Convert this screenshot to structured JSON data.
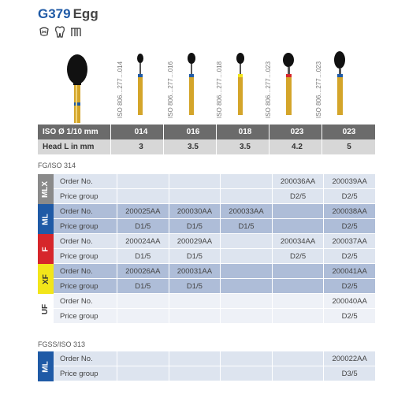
{
  "title": {
    "code": "G379",
    "name": "Egg"
  },
  "icons": [
    "tooth-crown-icon",
    "tooth-icon",
    "tooth-bridge-icon"
  ],
  "iso_labels": [
    "ISO 806…277…014",
    "ISO 806…277…016",
    "ISO 806…277…018",
    "ISO 806…277…023",
    "ISO 806…277…023"
  ],
  "header": {
    "iso_label": "ISO Ø 1/10 mm",
    "iso_values": [
      "014",
      "016",
      "018",
      "023",
      "023"
    ],
    "head_label": "Head L in mm",
    "head_values": [
      "3",
      "3.5",
      "3.5",
      "4.2",
      "5"
    ]
  },
  "section1": {
    "title": "FG/ISO 314",
    "groups": [
      {
        "tag": "MLX",
        "order_label": "Order No.",
        "price_label": "Price group",
        "orders": [
          "",
          "",
          "",
          "200036AA",
          "200039AA"
        ],
        "prices": [
          "",
          "",
          "",
          "D2/5",
          "D2/5"
        ]
      },
      {
        "tag": "ML",
        "order_label": "Order No.",
        "price_label": "Price group",
        "orders": [
          "200025AA",
          "200030AA",
          "200033AA",
          "",
          "200038AA"
        ],
        "prices": [
          "D1/5",
          "D1/5",
          "D1/5",
          "",
          "D2/5"
        ]
      },
      {
        "tag": "F",
        "order_label": "Order No.",
        "price_label": "Price group",
        "orders": [
          "200024AA",
          "200029AA",
          "",
          "200034AA",
          "200037AA"
        ],
        "prices": [
          "D1/5",
          "D1/5",
          "",
          "D2/5",
          "D2/5"
        ]
      },
      {
        "tag": "XF",
        "order_label": "Order No.",
        "price_label": "Price group",
        "orders": [
          "200026AA",
          "200031AA",
          "",
          "",
          "200041AA"
        ],
        "prices": [
          "D1/5",
          "D1/5",
          "",
          "",
          "D2/5"
        ]
      },
      {
        "tag": "UF",
        "order_label": "Order No.",
        "price_label": "Price group",
        "orders": [
          "",
          "",
          "",
          "",
          "200040AA"
        ],
        "prices": [
          "",
          "",
          "",
          "",
          "D2/5"
        ]
      }
    ]
  },
  "section2": {
    "title": "FGSS/ISO 313",
    "groups": [
      {
        "tag": "ML",
        "order_label": "Order No.",
        "price_label": "Price group",
        "orders": [
          "",
          "",
          "",
          "",
          "200022AA"
        ],
        "prices": [
          "",
          "",
          "",
          "",
          "D3/5"
        ]
      }
    ]
  },
  "colors": {
    "brand_blue": "#1f5aa6",
    "red": "#d6262b",
    "yellow": "#f2e51a",
    "gold": "#d4a52a",
    "black": "#111111"
  }
}
